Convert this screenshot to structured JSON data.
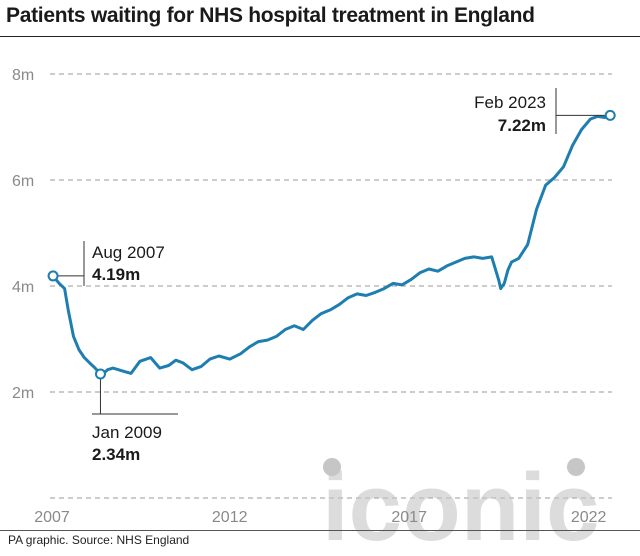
{
  "chart_data": {
    "type": "line",
    "title": "Patients waiting for NHS hospital treatment in England",
    "xlabel": "",
    "ylabel": "",
    "unit": "millions",
    "ylim": [
      0,
      8
    ],
    "xlim": [
      2007.55,
      2023.15
    ],
    "grid": true,
    "yticks": [
      {
        "value": 8,
        "label": "8m"
      },
      {
        "value": 6,
        "label": "6m"
      },
      {
        "value": 4,
        "label": "4m"
      },
      {
        "value": 2,
        "label": "2m"
      }
    ],
    "xticks": [
      {
        "value": 2007.55,
        "label": "2007"
      },
      {
        "value": 2012.5,
        "label": "2012"
      },
      {
        "value": 2017.5,
        "label": "2017"
      },
      {
        "value": 2022.5,
        "label": "2022"
      }
    ],
    "line_color": "#1e7eb0",
    "series": [
      {
        "x": [
          2007.58,
          2007.75,
          2007.9,
          2008.0,
          2008.15,
          2008.3,
          2008.45,
          2008.6,
          2008.75,
          2008.9,
          2009.0,
          2009.1,
          2009.25,
          2009.5,
          2009.75,
          2010.0,
          2010.3,
          2010.55,
          2010.8,
          2011.0,
          2011.2,
          2011.45,
          2011.7,
          2011.95,
          2012.2,
          2012.5,
          2012.8,
          2013.05,
          2013.3,
          2013.55,
          2013.8,
          2014.05,
          2014.3,
          2014.55,
          2014.8,
          2015.05,
          2015.3,
          2015.55,
          2015.8,
          2016.05,
          2016.3,
          2016.55,
          2016.8,
          2017.05,
          2017.3,
          2017.55,
          2017.8,
          2018.05,
          2018.3,
          2018.55,
          2018.8,
          2019.05,
          2019.3,
          2019.55,
          2019.8,
          2020.0,
          2020.05,
          2020.15,
          2020.25,
          2020.35,
          2020.55,
          2020.8,
          2021.05,
          2021.3,
          2021.55,
          2021.8,
          2022.05,
          2022.3,
          2022.55,
          2022.75,
          2022.95,
          2023.1
        ],
        "values": [
          4.19,
          4.05,
          3.95,
          3.55,
          3.05,
          2.8,
          2.65,
          2.55,
          2.45,
          2.34,
          2.36,
          2.42,
          2.45,
          2.4,
          2.35,
          2.58,
          2.65,
          2.45,
          2.5,
          2.6,
          2.55,
          2.42,
          2.48,
          2.62,
          2.68,
          2.62,
          2.72,
          2.85,
          2.95,
          2.98,
          3.05,
          3.18,
          3.25,
          3.18,
          3.35,
          3.48,
          3.55,
          3.65,
          3.78,
          3.85,
          3.82,
          3.88,
          3.95,
          4.05,
          4.02,
          4.12,
          4.25,
          4.32,
          4.28,
          4.38,
          4.45,
          4.52,
          4.55,
          4.52,
          4.55,
          4.1,
          3.95,
          4.05,
          4.3,
          4.45,
          4.52,
          4.78,
          5.45,
          5.9,
          6.05,
          6.25,
          6.65,
          6.95,
          7.15,
          7.2,
          7.18,
          7.22
        ]
      }
    ],
    "annotations": [
      {
        "x": 2007.58,
        "y": 4.19,
        "date": "Aug 2007",
        "value": "4.19m"
      },
      {
        "x": 2008.9,
        "y": 2.34,
        "date": "Jan 2009",
        "value": "2.34m"
      },
      {
        "x": 2023.1,
        "y": 7.22,
        "date": "Feb 2023",
        "value": "7.22m"
      }
    ]
  },
  "footer": {
    "source": "PA graphic. Source: NHS England"
  },
  "watermark": {
    "text": "iconic"
  }
}
